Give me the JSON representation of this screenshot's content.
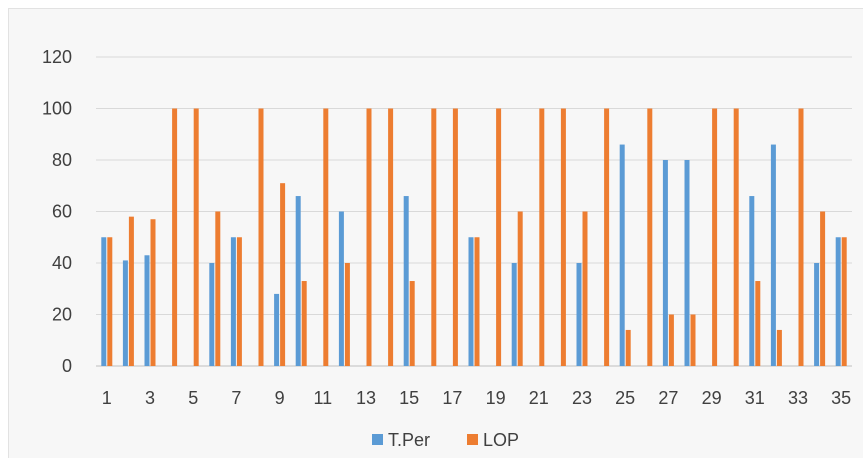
{
  "chart_data": {
    "type": "bar",
    "title": "",
    "xlabel": "",
    "ylabel": "",
    "ylim": [
      0,
      120
    ],
    "yticks": [
      "0",
      "20",
      "40",
      "60",
      "80",
      "100",
      "120"
    ],
    "grid": true,
    "legend_position": "bottom",
    "categories": [
      "1",
      "2",
      "3",
      "4",
      "5",
      "6",
      "7",
      "8",
      "9",
      "10",
      "11",
      "12",
      "13",
      "14",
      "15",
      "16",
      "17",
      "18",
      "19",
      "20",
      "21",
      "22",
      "23",
      "24",
      "25",
      "26",
      "27",
      "28",
      "29",
      "30",
      "31",
      "32",
      "33",
      "34",
      "35"
    ],
    "xtick_labels": [
      "1",
      "3",
      "5",
      "7",
      "9",
      "11",
      "13",
      "15",
      "17",
      "19",
      "21",
      "23",
      "25",
      "27",
      "29",
      "31",
      "33",
      "35"
    ],
    "series": [
      {
        "name": "T.Per",
        "color": "#5b9bd5",
        "values": [
          50,
          41,
          43,
          0,
          0,
          40,
          50,
          0,
          28,
          66,
          0,
          60,
          0,
          0,
          66,
          0,
          0,
          50,
          0,
          40,
          0,
          0,
          40,
          0,
          86,
          0,
          80,
          80,
          0,
          0,
          66,
          86,
          0,
          40,
          50
        ]
      },
      {
        "name": "LOP",
        "color": "#ed7d31",
        "values": [
          50,
          58,
          57,
          100,
          100,
          60,
          50,
          100,
          71,
          33,
          100,
          40,
          100,
          100,
          33,
          100,
          100,
          50,
          100,
          60,
          100,
          100,
          60,
          100,
          14,
          100,
          20,
          20,
          100,
          100,
          33,
          14,
          100,
          60,
          50
        ]
      }
    ]
  }
}
